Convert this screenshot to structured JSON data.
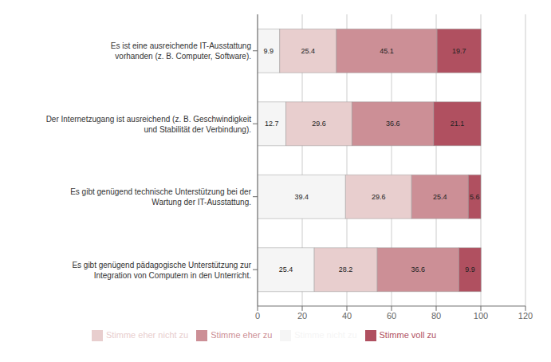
{
  "chart_data": {
    "type": "bar",
    "orientation": "horizontal",
    "stacked": true,
    "categories": [
      "Es ist eine ausreichende IT-Ausstattung\nvorhanden (z. B. Computer, Software).",
      "Der Internetzugang ist ausreichend (z. B. Geschwindigkeit\nund Stabilität der Verbindung).",
      "Es gibt genügend technische Unterstützung bei der\nWartung der IT-Ausstattung.",
      "Es gibt genügend pädagogische Unterstützung zur\nIntegration von Computern in den Unterricht."
    ],
    "series": [
      {
        "name": "Stimme nicht zu",
        "color": "#f5f5f5",
        "values": [
          9.9,
          12.7,
          39.4,
          25.4
        ]
      },
      {
        "name": "Stimme eher nicht zu",
        "color": "#e8cece",
        "values": [
          25.4,
          29.6,
          29.6,
          28.2
        ]
      },
      {
        "name": "Stimme eher zu",
        "color": "#cc8f96",
        "values": [
          45.1,
          36.6,
          25.4,
          36.6
        ]
      },
      {
        "name": "Stimme voll zu",
        "color": "#b05060",
        "values": [
          19.7,
          21.1,
          5.6,
          9.9
        ]
      }
    ],
    "xlim": [
      0,
      120
    ],
    "xticks": [
      0,
      20,
      40,
      60,
      80,
      100,
      120
    ],
    "grid": true,
    "legend": "bottom",
    "data_labels": true
  }
}
